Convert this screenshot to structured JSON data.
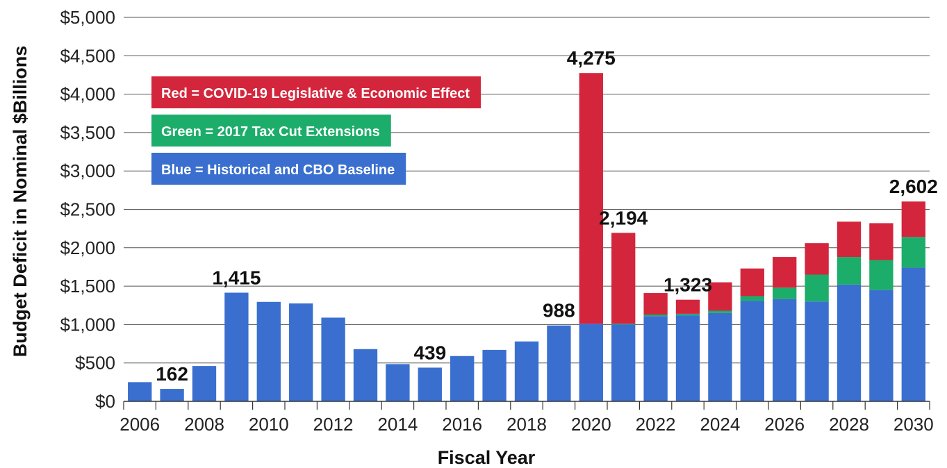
{
  "chart_data": {
    "type": "bar",
    "stacked": true,
    "xlabel": "Fiscal Year",
    "ylabel": "Budget Deficit in Nominal $Billions",
    "ylim": [
      0,
      5000
    ],
    "yticks": [
      0,
      500,
      1000,
      1500,
      2000,
      2500,
      3000,
      3500,
      4000,
      4500,
      5000
    ],
    "ytick_labels": [
      "$0",
      "$500",
      "$1,000",
      "$1,500",
      "$2,000",
      "$2,500",
      "$3,000",
      "$3,500",
      "$4,000",
      "$4,500",
      "$5,000"
    ],
    "grid": "horizontal",
    "categories": [
      2006,
      2007,
      2008,
      2009,
      2010,
      2011,
      2012,
      2013,
      2014,
      2015,
      2016,
      2017,
      2018,
      2019,
      2020,
      2021,
      2022,
      2023,
      2024,
      2025,
      2026,
      2027,
      2028,
      2029,
      2030
    ],
    "xtick_labels": [
      "2006",
      "2008",
      "2010",
      "2012",
      "2014",
      "2016",
      "2018",
      "2020",
      "2022",
      "2024",
      "2026",
      "2028",
      "2030"
    ],
    "series": [
      {
        "name": "Blue = Historical and CBO Baseline",
        "color": "#3a6fd0",
        "values": [
          250,
          162,
          460,
          1415,
          1295,
          1275,
          1090,
          680,
          485,
          439,
          590,
          670,
          780,
          988,
          1010,
          1000,
          1110,
          1120,
          1150,
          1310,
          1330,
          1300,
          1520,
          1450,
          1740
        ]
      },
      {
        "name": "Green = 2017 Tax Cut Extensions",
        "color": "#1cad6a",
        "values": [
          0,
          0,
          0,
          0,
          0,
          0,
          0,
          0,
          0,
          0,
          0,
          0,
          0,
          0,
          0,
          10,
          20,
          20,
          30,
          60,
          150,
          350,
          360,
          390,
          400
        ]
      },
      {
        "name": "Red = COVID-19 Legislative & Economic Effect",
        "color": "#d3263c",
        "values": [
          0,
          0,
          0,
          0,
          0,
          0,
          0,
          0,
          0,
          0,
          0,
          0,
          0,
          0,
          3265,
          1184,
          280,
          183,
          370,
          360,
          400,
          410,
          460,
          480,
          462
        ]
      }
    ],
    "annotations": [
      {
        "year": 2007,
        "label": "162"
      },
      {
        "year": 2009,
        "label": "1,415"
      },
      {
        "year": 2015,
        "label": "439"
      },
      {
        "year": 2019,
        "label": "988"
      },
      {
        "year": 2020,
        "label": "4,275"
      },
      {
        "year": 2021,
        "label": "2,194"
      },
      {
        "year": 2023,
        "label": "1,323"
      },
      {
        "year": 2030,
        "label": "2,602"
      }
    ],
    "legend_position": "top-left",
    "legend_order": [
      2,
      1,
      0
    ]
  }
}
